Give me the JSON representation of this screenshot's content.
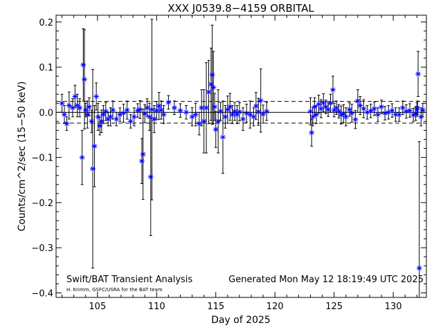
{
  "chart_data": {
    "type": "scatter",
    "title": "XXX J0539.8−4159 ORBITAL",
    "xlabel": "Day of 2025",
    "ylabel": "Counts/cm^2/sec (15−50 keV)",
    "xlim": [
      101.5,
      132.8
    ],
    "ylim": [
      -0.41,
      0.215
    ],
    "x_ticks": [
      105,
      110,
      115,
      120,
      125,
      130
    ],
    "x_tick_labels": [
      "105",
      "110",
      "115",
      "120",
      "125",
      "130"
    ],
    "y_ticks": [
      0.2,
      0.1,
      0.0,
      -0.1,
      -0.2,
      -0.3,
      -0.4
    ],
    "y_tick_labels": [
      "0.2",
      "0.1",
      "0.0",
      "−0.1",
      "−0.2",
      "−0.3",
      "−0.4"
    ],
    "reference_lines": [
      {
        "y": 0.0,
        "style": "solid"
      },
      {
        "y": 0.024,
        "style": "dashed"
      },
      {
        "y": -0.024,
        "style": "dashed"
      }
    ],
    "grid": false,
    "marker": "asterisk",
    "marker_color": "#0000ff",
    "errorbar_color": "#000000",
    "footer_left": "Swift/BAT Transient Analysis",
    "footer_left_small": "H. Krimm, GSFC/USRA for the BAT team",
    "footer_right": "Generated Mon May 12 18:19:49 UTC 2025",
    "series": [
      {
        "x": [
          102.0,
          102.2,
          102.4,
          102.6,
          102.9,
          103.1,
          103.3,
          103.5,
          103.7,
          103.8,
          103.9,
          104.0,
          104.15,
          104.3,
          104.5,
          104.6,
          104.75,
          104.9,
          105.05,
          105.2,
          105.35,
          105.5,
          105.7,
          105.9,
          106.1,
          106.3,
          106.6,
          106.9,
          107.2,
          107.5,
          107.8,
          108.1,
          108.4,
          108.6,
          108.75,
          108.85,
          109.0,
          109.2,
          109.4,
          109.5,
          109.6,
          109.8,
          110.0,
          110.2,
          110.4,
          110.6,
          111.0,
          111.5,
          112.0,
          112.5,
          113.0,
          113.3,
          113.6,
          113.8,
          114.0,
          114.2,
          114.4,
          114.6,
          114.7,
          114.8,
          114.9,
          115.0,
          115.2,
          115.4,
          115.6,
          115.8,
          116.0,
          116.2,
          116.4,
          116.6,
          116.8,
          117.0,
          117.3,
          117.6,
          117.9,
          118.2,
          118.4,
          118.6,
          118.8,
          119.0,
          119.3,
          123.0,
          123.1,
          123.2,
          123.35,
          123.5,
          123.7,
          123.9,
          124.1,
          124.3,
          124.5,
          124.7,
          124.9,
          125.0,
          125.2,
          125.4,
          125.6,
          125.8,
          126.0,
          126.3,
          126.5,
          126.8,
          127.0,
          127.2,
          127.5,
          127.8,
          128.1,
          128.4,
          128.7,
          129.0,
          129.3,
          129.6,
          129.9,
          130.2,
          130.5,
          130.8,
          131.1,
          131.4,
          131.7,
          131.9,
          132.0,
          132.05,
          132.1,
          132.2,
          132.35,
          132.5
        ],
        "y": [
          0.02,
          -0.005,
          -0.025,
          0.015,
          0.01,
          0.035,
          0.015,
          0.01,
          -0.1,
          0.105,
          0.073,
          0.005,
          -0.005,
          0.012,
          -0.02,
          -0.125,
          -0.075,
          0.035,
          -0.01,
          -0.03,
          -0.02,
          -0.005,
          0.002,
          -0.015,
          -0.01,
          0.005,
          -0.015,
          -0.005,
          -0.002,
          0.005,
          -0.02,
          -0.01,
          0.004,
          0.006,
          -0.108,
          -0.093,
          -0.003,
          0.01,
          -0.01,
          -0.143,
          0.006,
          -0.015,
          0.004,
          0.014,
          0.005,
          -0.005,
          0.022,
          0.01,
          0.004,
          0.0,
          -0.01,
          -0.005,
          -0.025,
          0.01,
          -0.02,
          0.01,
          0.045,
          0.062,
          0.083,
          0.055,
          0.012,
          -0.038,
          -0.02,
          0.002,
          -0.055,
          -0.01,
          0.006,
          0.012,
          -0.005,
          0.002,
          -0.005,
          0.001,
          -0.015,
          -0.002,
          -0.005,
          -0.01,
          0.014,
          0.001,
          0.026,
          -0.004,
          0.002,
          0.002,
          -0.045,
          -0.01,
          0.012,
          -0.005,
          0.018,
          0.008,
          0.021,
          0.012,
          0.006,
          0.02,
          0.05,
          0.005,
          0.01,
          0.002,
          -0.006,
          -0.003,
          -0.01,
          0.006,
          -0.002,
          -0.016,
          0.025,
          0.015,
          0.008,
          0.0,
          0.003,
          0.008,
          -0.005,
          0.012,
          -0.002,
          0.0,
          0.004,
          -0.005,
          -0.005,
          0.01,
          0.002,
          0.004,
          -0.006,
          -0.003,
          0.006,
          0.01,
          0.085,
          -0.345,
          -0.01,
          0.005
        ],
        "err": [
          0.02,
          0.02,
          0.015,
          0.03,
          0.02,
          0.025,
          0.025,
          0.02,
          0.06,
          0.08,
          0.11,
          0.015,
          0.03,
          0.02,
          0.025,
          0.22,
          0.09,
          0.03,
          0.03,
          0.02,
          0.025,
          0.02,
          0.02,
          0.015,
          0.02,
          0.02,
          0.015,
          0.015,
          0.02,
          0.02,
          0.015,
          0.02,
          0.015,
          0.02,
          0.05,
          0.1,
          0.02,
          0.02,
          0.03,
          0.13,
          0.2,
          0.03,
          0.02,
          0.03,
          0.02,
          0.02,
          0.015,
          0.015,
          0.015,
          0.015,
          0.02,
          0.025,
          0.025,
          0.04,
          0.07,
          0.1,
          0.07,
          0.08,
          0.11,
          0.08,
          0.03,
          0.04,
          0.07,
          0.02,
          0.08,
          0.025,
          0.03,
          0.03,
          0.02,
          0.02,
          0.02,
          0.02,
          0.025,
          0.02,
          0.03,
          0.02,
          0.03,
          0.03,
          0.07,
          0.02,
          0.02,
          0.03,
          0.03,
          0.02,
          0.02,
          0.02,
          0.02,
          0.02,
          0.02,
          0.015,
          0.015,
          0.02,
          0.03,
          0.015,
          0.015,
          0.015,
          0.02,
          0.02,
          0.02,
          0.015,
          0.02,
          0.02,
          0.025,
          0.02,
          0.02,
          0.015,
          0.015,
          0.015,
          0.015,
          0.015,
          0.015,
          0.015,
          0.015,
          0.015,
          0.015,
          0.015,
          0.015,
          0.015,
          0.015,
          0.015,
          0.015,
          0.015,
          0.05,
          0.28,
          0.02,
          0.015
        ]
      }
    ]
  }
}
